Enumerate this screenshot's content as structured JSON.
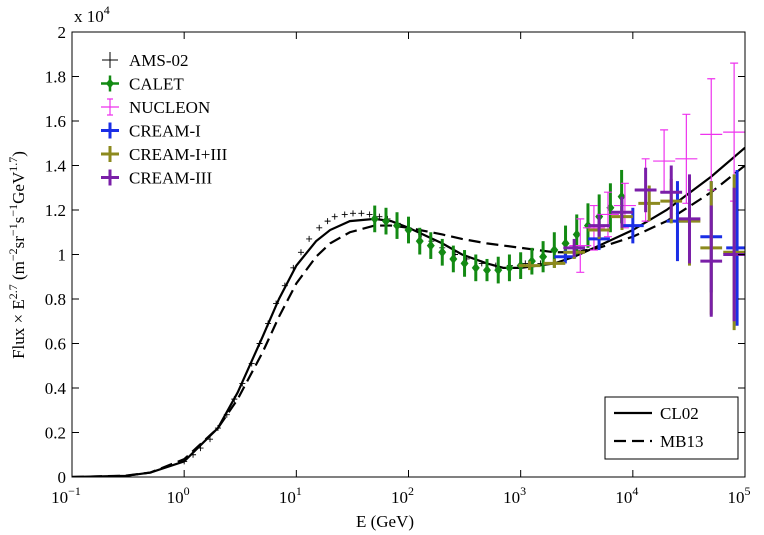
{
  "chart_data": {
    "type": "scatter",
    "xlabel": "E (GeV)",
    "ylabel": [
      {
        "text": "Flux × E",
        "sup": false
      },
      {
        "text": "2.7",
        "sup": true
      },
      {
        "text": " (m",
        "sup": false
      },
      {
        "text": "−2",
        "sup": true
      },
      {
        "text": "sr",
        "sup": false
      },
      {
        "text": "−1",
        "sup": true
      },
      {
        "text": "s",
        "sup": false
      },
      {
        "text": "−1",
        "sup": true
      },
      {
        "text": "GeV",
        "sup": false
      },
      {
        "text": "1.7",
        "sup": true
      },
      {
        "text": ")",
        "sup": false
      }
    ],
    "multiplier": {
      "text": "x 10",
      "exp": "4"
    },
    "xscale": "log",
    "xlim": [
      0.1,
      100000
    ],
    "ylim": [
      0,
      2
    ],
    "xticks": [
      {
        "value": 0.1,
        "label": "10",
        "exp": "−1"
      },
      {
        "value": 1,
        "label": "10",
        "exp": "0"
      },
      {
        "value": 10,
        "label": "10",
        "exp": "1"
      },
      {
        "value": 100,
        "label": "10",
        "exp": "2"
      },
      {
        "value": 1000,
        "label": "10",
        "exp": "3"
      },
      {
        "value": 10000,
        "label": "10",
        "exp": "4"
      },
      {
        "value": 100000,
        "label": "10",
        "exp": "5"
      }
    ],
    "yticks": [
      0,
      0.2,
      0.4,
      0.6,
      0.8,
      1,
      1.2,
      1.4,
      1.6,
      1.8,
      2
    ],
    "series": [
      {
        "name": "AMS-02",
        "color": "#000000",
        "marker": "plus",
        "x": [
          1.0,
          1.2,
          1.4,
          1.7,
          2.0,
          2.4,
          2.8,
          3.3,
          4.0,
          4.7,
          5.6,
          6.6,
          7.9,
          9.4,
          11,
          13,
          16,
          19,
          22,
          27,
          32,
          38,
          45,
          55,
          65,
          80,
          100,
          130,
          160,
          200,
          260,
          330,
          450,
          600,
          800,
          1100,
          1500
        ],
        "values": [
          0.07,
          0.1,
          0.13,
          0.17,
          0.22,
          0.28,
          0.35,
          0.42,
          0.51,
          0.6,
          0.69,
          0.78,
          0.86,
          0.94,
          1.01,
          1.07,
          1.12,
          1.15,
          1.17,
          1.18,
          1.185,
          1.185,
          1.18,
          1.17,
          1.16,
          1.14,
          1.12,
          1.09,
          1.06,
          1.03,
          1.0,
          0.98,
          0.96,
          0.95,
          0.95,
          0.96,
          0.96
        ]
      },
      {
        "name": "CALET",
        "color": "#138a13",
        "marker": "diamond",
        "x": [
          50,
          63,
          79,
          100,
          126,
          158,
          200,
          251,
          316,
          398,
          501,
          631,
          794,
          1000,
          1259,
          1585,
          1995,
          2512,
          3162,
          3981,
          5012,
          6310,
          7943
        ],
        "values": [
          1.16,
          1.15,
          1.13,
          1.11,
          1.06,
          1.04,
          1.01,
          0.98,
          0.96,
          0.94,
          0.93,
          0.93,
          0.94,
          0.95,
          0.97,
          0.99,
          1.02,
          1.05,
          1.09,
          1.13,
          1.17,
          1.21,
          1.26
        ],
        "err": [
          0.06,
          0.06,
          0.06,
          0.06,
          0.06,
          0.06,
          0.06,
          0.06,
          0.06,
          0.06,
          0.05,
          0.06,
          0.06,
          0.06,
          0.06,
          0.07,
          0.08,
          0.08,
          0.09,
          0.1,
          0.1,
          0.11,
          0.12
        ]
      },
      {
        "name": "NUCLEON",
        "color": "#ee33ee",
        "marker": "cap",
        "x": [
          3400,
          4500,
          6000,
          8500,
          13000,
          19000,
          30000,
          50000,
          80000
        ],
        "values": [
          1.04,
          1.12,
          1.18,
          1.22,
          1.29,
          1.42,
          1.43,
          1.54,
          1.55
        ],
        "err": [
          0.12,
          0.1,
          0.1,
          0.1,
          0.14,
          0.14,
          0.2,
          0.25,
          0.31
        ]
      },
      {
        "name": "CREAM-I",
        "color": "#1a2ee6",
        "marker": "bin",
        "x": [
          2500,
          5000,
          10000,
          25000,
          50000,
          85000
        ],
        "values": [
          0.99,
          1.07,
          1.13,
          1.15,
          1.08,
          1.03
        ],
        "err": [
          0.03,
          0.05,
          0.08,
          0.18,
          0.25,
          0.35
        ],
        "x_lo": [
          2000,
          4000,
          8000,
          20000,
          40000,
          68000
        ],
        "x_hi": [
          3125,
          6250,
          12500,
          31250,
          62500,
          100000
        ]
      },
      {
        "name": "CREAM-I+III",
        "color": "#8c8a1e",
        "marker": "bin",
        "x": [
          1200,
          2000,
          3000,
          5000,
          8000,
          14000,
          22000,
          32000,
          50000,
          80000
        ],
        "values": [
          0.95,
          0.96,
          1.01,
          1.11,
          1.17,
          1.23,
          1.24,
          1.15,
          1.03,
          1.01
        ],
        "err": [
          0.02,
          0.02,
          0.03,
          0.04,
          0.06,
          0.08,
          0.1,
          0.2,
          0.3,
          0.35
        ],
        "x_lo": [
          960,
          1600,
          2400,
          4000,
          6400,
          11200,
          17600,
          25600,
          40000,
          64000
        ],
        "x_hi": [
          1500,
          2500,
          3750,
          6250,
          10000,
          17500,
          27500,
          40000,
          62500,
          100000
        ]
      },
      {
        "name": "CREAM-III",
        "color": "#7a1fa8",
        "marker": "bin",
        "x": [
          3000,
          5000,
          8000,
          13000,
          22000,
          32000,
          50000,
          80000
        ],
        "values": [
          1.03,
          1.13,
          1.19,
          1.29,
          1.28,
          1.16,
          0.97,
          1.0
        ],
        "err": [
          0.04,
          0.05,
          0.07,
          0.1,
          0.12,
          0.2,
          0.25,
          0.3
        ],
        "x_lo": [
          2400,
          4000,
          6400,
          10400,
          17600,
          25600,
          40000,
          64000
        ],
        "x_hi": [
          3750,
          6250,
          10000,
          16250,
          27500,
          40000,
          62500,
          100000
        ]
      }
    ],
    "lines": [
      {
        "name": "CL02",
        "color": "#000000",
        "dash": "solid",
        "x": [
          0.1,
          0.3,
          0.5,
          1,
          2,
          3,
          5,
          7,
          10,
          15,
          20,
          30,
          50,
          70,
          100,
          200,
          300,
          500,
          700,
          1000,
          2000,
          3000,
          5000,
          10000,
          20000,
          50000,
          100000
        ],
        "values": [
          0.0,
          0.005,
          0.02,
          0.07,
          0.22,
          0.38,
          0.63,
          0.8,
          0.95,
          1.06,
          1.11,
          1.15,
          1.16,
          1.15,
          1.12,
          1.05,
          1.0,
          0.96,
          0.94,
          0.94,
          0.96,
          0.99,
          1.04,
          1.11,
          1.2,
          1.35,
          1.48
        ]
      },
      {
        "name": "MB13",
        "color": "#000000",
        "dash": "dashed",
        "x": [
          0.1,
          0.3,
          0.5,
          1,
          2,
          3,
          5,
          7,
          10,
          15,
          20,
          30,
          50,
          70,
          100,
          200,
          300,
          500,
          1000,
          2000,
          3000,
          5000,
          10000,
          20000,
          50000,
          100000
        ],
        "values": [
          0.0,
          0.006,
          0.02,
          0.08,
          0.22,
          0.35,
          0.56,
          0.72,
          0.87,
          0.99,
          1.05,
          1.1,
          1.13,
          1.13,
          1.12,
          1.09,
          1.07,
          1.05,
          1.03,
          1.01,
          1.01,
          1.03,
          1.08,
          1.15,
          1.28,
          1.4
        ]
      }
    ]
  }
}
